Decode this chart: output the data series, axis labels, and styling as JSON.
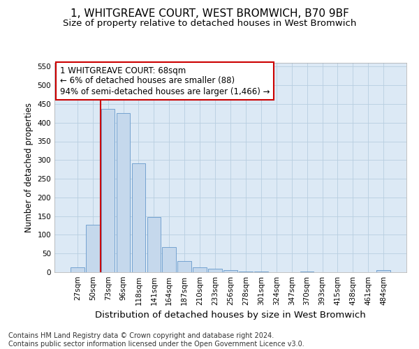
{
  "title": "1, WHITGREAVE COURT, WEST BROMWICH, B70 9BF",
  "subtitle": "Size of property relative to detached houses in West Bromwich",
  "xlabel": "Distribution of detached houses by size in West Bromwich",
  "ylabel": "Number of detached properties",
  "categories": [
    "27sqm",
    "50sqm",
    "73sqm",
    "96sqm",
    "118sqm",
    "141sqm",
    "164sqm",
    "187sqm",
    "210sqm",
    "233sqm",
    "256sqm",
    "278sqm",
    "301sqm",
    "324sqm",
    "347sqm",
    "370sqm",
    "393sqm",
    "415sqm",
    "438sqm",
    "461sqm",
    "484sqm"
  ],
  "values": [
    14,
    127,
    437,
    425,
    292,
    147,
    68,
    30,
    14,
    9,
    5,
    1,
    1,
    0,
    0,
    1,
    0,
    0,
    0,
    0,
    5
  ],
  "bar_color": "#c5d8ec",
  "bar_edge_color": "#6699cc",
  "grid_color": "#b8cee0",
  "background_color": "#dce9f5",
  "vline_x_index": 2,
  "vline_color": "#cc0000",
  "annotation_text": "1 WHITGREAVE COURT: 68sqm\n← 6% of detached houses are smaller (88)\n94% of semi-detached houses are larger (1,466) →",
  "annotation_box_facecolor": "#ffffff",
  "annotation_box_edgecolor": "#cc0000",
  "ylim": [
    0,
    560
  ],
  "yticks": [
    0,
    50,
    100,
    150,
    200,
    250,
    300,
    350,
    400,
    450,
    500,
    550
  ],
  "footnote": "Contains HM Land Registry data © Crown copyright and database right 2024.\nContains public sector information licensed under the Open Government Licence v3.0.",
  "title_fontsize": 11,
  "subtitle_fontsize": 9.5,
  "xlabel_fontsize": 9.5,
  "ylabel_fontsize": 8.5,
  "tick_fontsize": 7.5,
  "annotation_fontsize": 8.5,
  "footnote_fontsize": 7
}
